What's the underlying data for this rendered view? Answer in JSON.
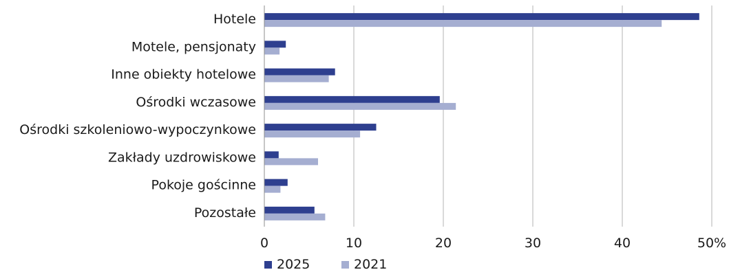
{
  "chart_data": {
    "type": "bar",
    "orientation": "horizontal",
    "categories": [
      "Hotele",
      "Motele, pensjonaty",
      "Inne obiekty hotelowe",
      "Ośrodki wczasowe",
      "Ośrodki  szkoleniowo-wypoczynkowe",
      "Zakłady uzdrowiskowe",
      "Pokoje gościnne",
      "Pozostałe"
    ],
    "series": [
      {
        "name": "2025",
        "color": "#2e3f8f",
        "values": [
          48.6,
          2.4,
          7.9,
          19.6,
          12.5,
          1.6,
          2.6,
          5.6
        ]
      },
      {
        "name": "2021",
        "color": "#a5aed1",
        "values": [
          44.4,
          1.7,
          7.2,
          21.4,
          10.7,
          6.0,
          1.8,
          6.8
        ]
      }
    ],
    "xlim": [
      0,
      50
    ],
    "xticks": [
      "0",
      "10",
      "20",
      "30",
      "40",
      "50%"
    ],
    "xtick_values": [
      0,
      10,
      20,
      30,
      40,
      50
    ],
    "grid": "vertical",
    "legend": "bottom-left"
  }
}
